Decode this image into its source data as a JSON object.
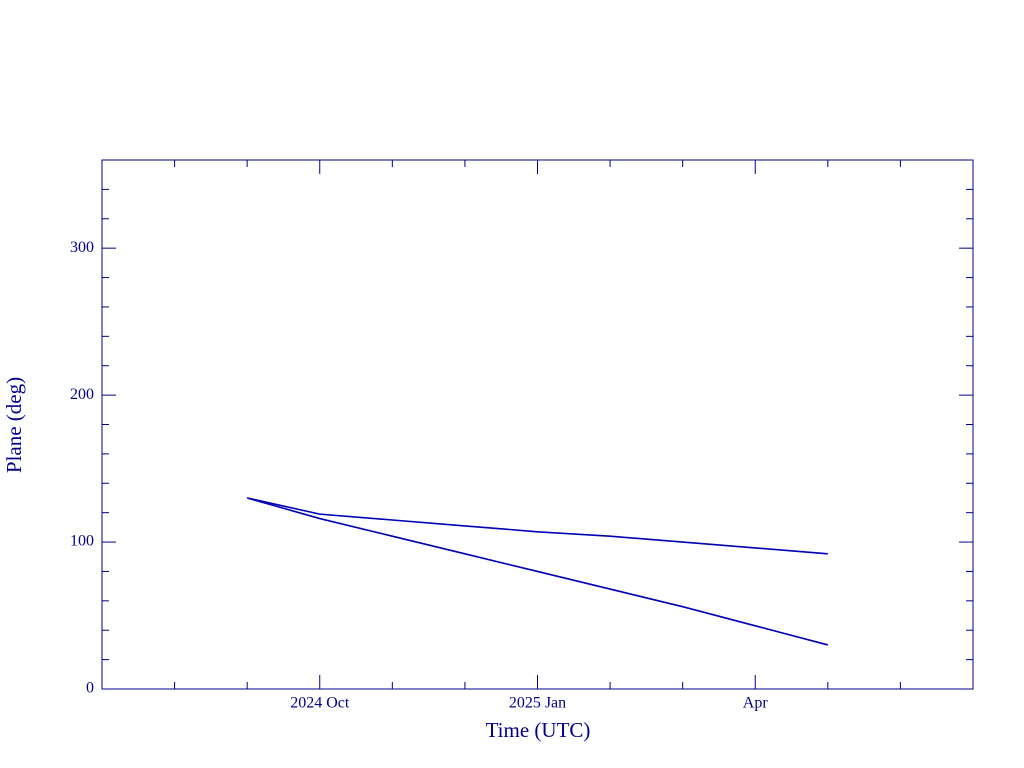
{
  "chart_data": {
    "type": "line",
    "x_label": "Time (UTC)",
    "y_label": "Plane (deg)",
    "x": [
      "2024-09",
      "2024-10",
      "2024-11",
      "2024-12",
      "2025-01",
      "2025-02",
      "2025-03",
      "2025-04",
      "2025-05"
    ],
    "series": [
      {
        "color": "#0000b4",
        "values": [
          130,
          119,
          115,
          111,
          107,
          104,
          100,
          96,
          92
        ]
      },
      {
        "color": "#0000b4",
        "values": [
          130,
          116,
          104,
          92,
          80,
          68,
          56,
          43,
          30
        ]
      }
    ],
    "xlim": [
      "2024-07",
      "2025-07"
    ],
    "xticks": [
      {
        "value": "2024-10",
        "label": "2024 Oct"
      },
      {
        "value": "2025-01",
        "label": "2025 Jan"
      },
      {
        "value": "2025-04",
        "label": "Apr"
      }
    ],
    "xminorticks": [
      "2024-08",
      "2024-09",
      "2024-11",
      "2024-12",
      "2025-02",
      "2025-03",
      "2025-05",
      "2025-06"
    ],
    "ylim": [
      0,
      360
    ],
    "yticks": [
      0,
      100,
      200,
      300
    ],
    "yminorticks": [
      20,
      40,
      60,
      80,
      120,
      140,
      160,
      180,
      220,
      240,
      260,
      280,
      320,
      340
    ],
    "axis_color": "#00008b"
  }
}
